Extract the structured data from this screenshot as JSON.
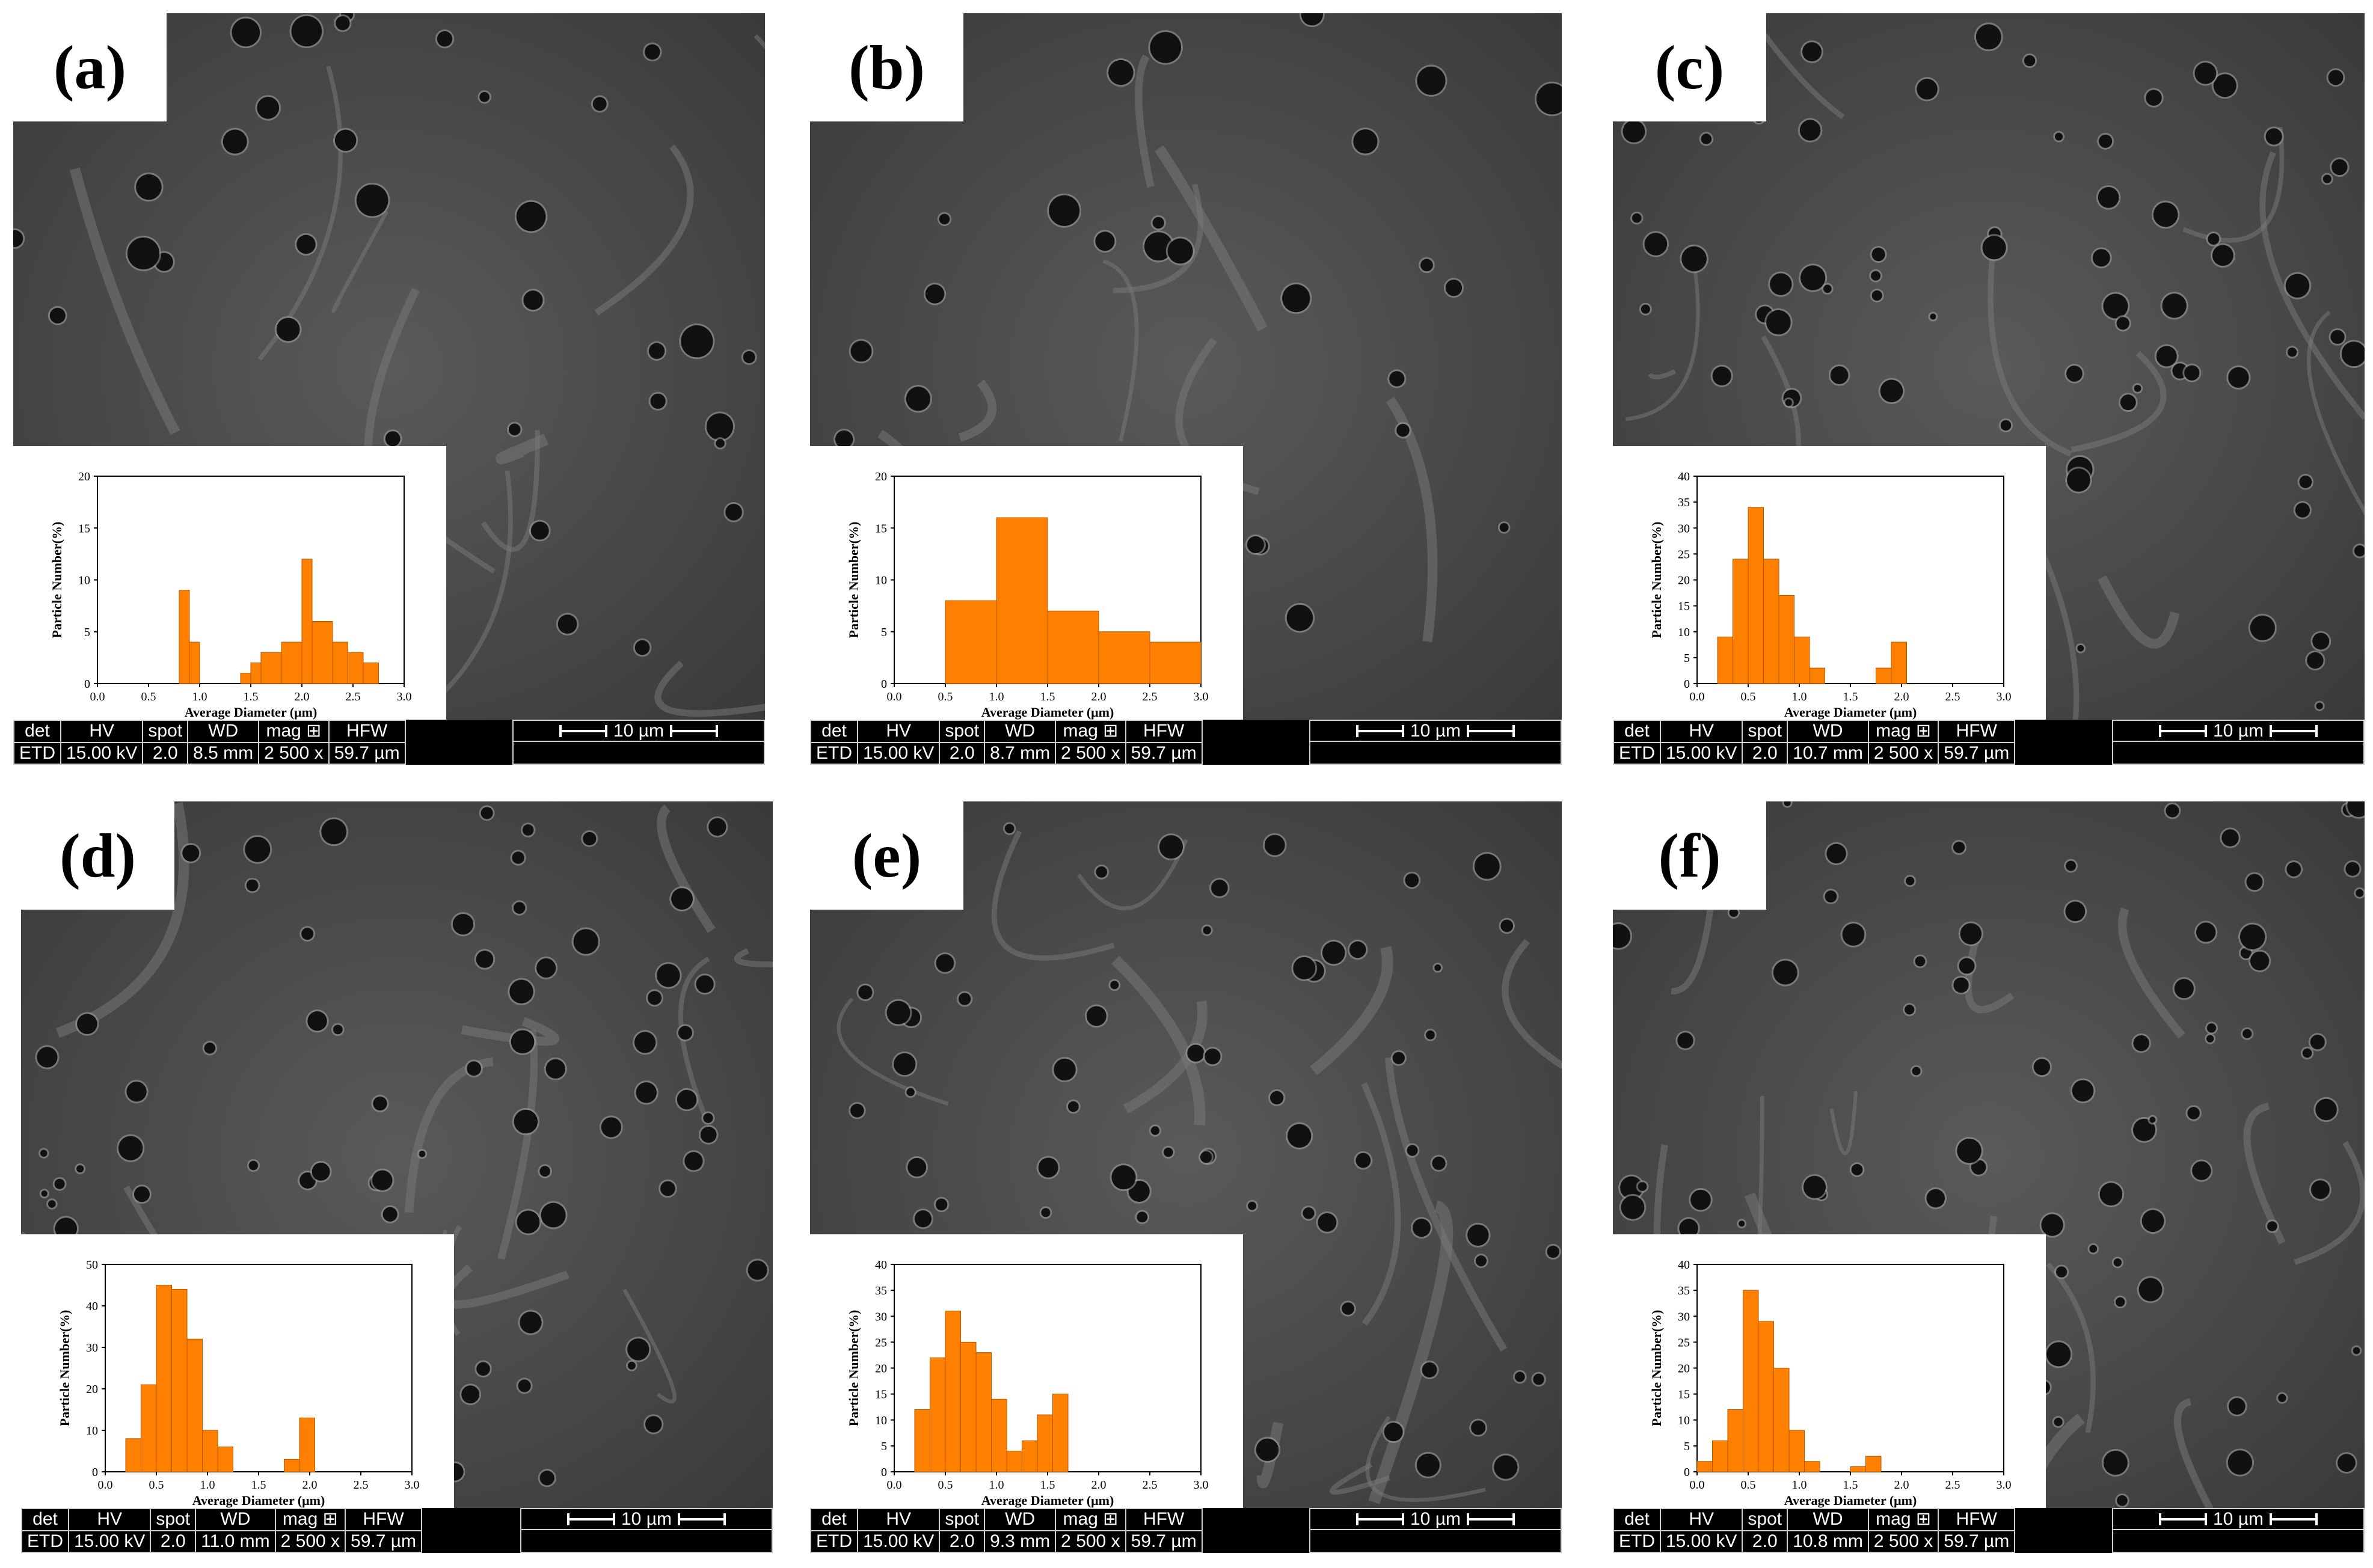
{
  "colors": {
    "bar_fill": "#ff8000",
    "bar_edge": "#b35a00",
    "sem_gray": "#4a4a4a"
  },
  "panels": [
    {
      "id": "a",
      "label": "(a)",
      "wd": "8.5 mm",
      "chart_data": {
        "type": "bar",
        "xlabel": "Average Diameter (μm)",
        "ylabel": "Particle Number(%)",
        "xlim": [
          0,
          3.0
        ],
        "ylim": [
          0,
          20
        ],
        "yticks": [
          "0",
          "5",
          "10",
          "15",
          "20"
        ],
        "xticks": [
          "0.0",
          "0.5",
          "1.0",
          "1.5",
          "2.0",
          "2.5",
          "3.0"
        ],
        "bins": [
          [
            0.8,
            0.9,
            9
          ],
          [
            0.9,
            1.0,
            4
          ],
          [
            1.4,
            1.5,
            1
          ],
          [
            1.5,
            1.6,
            2
          ],
          [
            1.6,
            1.8,
            3
          ],
          [
            1.8,
            2.0,
            4
          ],
          [
            2.0,
            2.1,
            12
          ],
          [
            2.1,
            2.3,
            6
          ],
          [
            2.3,
            2.45,
            4
          ],
          [
            2.45,
            2.6,
            3
          ],
          [
            2.6,
            2.75,
            2
          ]
        ]
      }
    },
    {
      "id": "b",
      "label": "(b)",
      "wd": "8.7 mm",
      "chart_data": {
        "type": "bar",
        "xlabel": "Average Diameter (μm)",
        "ylabel": "Particle Number(%)",
        "xlim": [
          0,
          3.0
        ],
        "ylim": [
          0,
          20
        ],
        "yticks": [
          "0",
          "5",
          "10",
          "15",
          "20"
        ],
        "xticks": [
          "0.0",
          "0.5",
          "1.0",
          "1.5",
          "2.0",
          "2.5",
          "3.0"
        ],
        "bins": [
          [
            0.5,
            1.0,
            8
          ],
          [
            1.0,
            1.5,
            16
          ],
          [
            1.5,
            2.0,
            7
          ],
          [
            2.0,
            2.5,
            5
          ],
          [
            2.5,
            3.0,
            4
          ]
        ]
      }
    },
    {
      "id": "c",
      "label": "(c)",
      "wd": "10.7 mm",
      "chart_data": {
        "type": "bar",
        "xlabel": "Average Diameter (μm)",
        "ylabel": "Particle Number(%)",
        "xlim": [
          0,
          3.0
        ],
        "ylim": [
          0,
          40
        ],
        "yticks": [
          "0",
          "5",
          "10",
          "15",
          "20",
          "25",
          "30",
          "35",
          "40"
        ],
        "xticks": [
          "0.0",
          "0.5",
          "1.0",
          "1.5",
          "2.0",
          "2.5",
          "3.0"
        ],
        "bins": [
          [
            0.2,
            0.35,
            9
          ],
          [
            0.35,
            0.5,
            24
          ],
          [
            0.5,
            0.65,
            34
          ],
          [
            0.65,
            0.8,
            24
          ],
          [
            0.8,
            0.95,
            17
          ],
          [
            0.95,
            1.1,
            9
          ],
          [
            1.1,
            1.25,
            3
          ],
          [
            1.75,
            1.9,
            3
          ],
          [
            1.9,
            2.05,
            8
          ]
        ]
      }
    },
    {
      "id": "d",
      "label": "(d)",
      "wd": "11.0 mm",
      "chart_data": {
        "type": "bar",
        "xlabel": "Average Diameter (μm)",
        "ylabel": "Particle Number(%)",
        "xlim": [
          0,
          3.0
        ],
        "ylim": [
          0,
          50
        ],
        "yticks": [
          "0",
          "10",
          "20",
          "30",
          "40",
          "50"
        ],
        "xticks": [
          "0.0",
          "0.5",
          "1.0",
          "1.5",
          "2.0",
          "2.5",
          "3.0"
        ],
        "bins": [
          [
            0.2,
            0.35,
            8
          ],
          [
            0.35,
            0.5,
            21
          ],
          [
            0.5,
            0.65,
            45
          ],
          [
            0.65,
            0.8,
            44
          ],
          [
            0.8,
            0.95,
            32
          ],
          [
            0.95,
            1.1,
            10
          ],
          [
            1.1,
            1.25,
            6
          ],
          [
            1.75,
            1.9,
            3
          ],
          [
            1.9,
            2.05,
            13
          ]
        ]
      }
    },
    {
      "id": "e",
      "label": "(e)",
      "wd": "9.3 mm",
      "chart_data": {
        "type": "bar",
        "xlabel": "Average Diameter (μm)",
        "ylabel": "Particle Number(%)",
        "xlim": [
          0,
          3.0
        ],
        "ylim": [
          0,
          40
        ],
        "yticks": [
          "0",
          "5",
          "10",
          "15",
          "20",
          "25",
          "30",
          "35",
          "40"
        ],
        "xticks": [
          "0.0",
          "0.5",
          "1.0",
          "1.5",
          "2.0",
          "2.5",
          "3.0"
        ],
        "bins": [
          [
            0.2,
            0.35,
            12
          ],
          [
            0.35,
            0.5,
            22
          ],
          [
            0.5,
            0.65,
            31
          ],
          [
            0.65,
            0.8,
            25
          ],
          [
            0.8,
            0.95,
            23
          ],
          [
            0.95,
            1.1,
            14
          ],
          [
            1.1,
            1.25,
            4
          ],
          [
            1.25,
            1.4,
            6
          ],
          [
            1.4,
            1.55,
            11
          ],
          [
            1.55,
            1.7,
            15
          ]
        ]
      }
    },
    {
      "id": "f",
      "label": "(f)",
      "wd": "10.8 mm",
      "chart_data": {
        "type": "bar",
        "xlabel": "Average Diameter (μm)",
        "ylabel": "Particle Number(%)",
        "xlim": [
          0,
          3.0
        ],
        "ylim": [
          0,
          40
        ],
        "yticks": [
          "0",
          "5",
          "10",
          "15",
          "20",
          "25",
          "30",
          "35",
          "40"
        ],
        "xticks": [
          "0.0",
          "0.5",
          "1.0",
          "1.5",
          "2.0",
          "2.5",
          "3.0"
        ],
        "bins": [
          [
            0.0,
            0.15,
            2
          ],
          [
            0.15,
            0.3,
            6
          ],
          [
            0.3,
            0.45,
            12
          ],
          [
            0.45,
            0.6,
            35
          ],
          [
            0.6,
            0.75,
            29
          ],
          [
            0.75,
            0.9,
            20
          ],
          [
            0.9,
            1.05,
            8
          ],
          [
            1.05,
            1.2,
            2
          ],
          [
            1.5,
            1.65,
            1
          ],
          [
            1.65,
            1.8,
            3
          ]
        ]
      }
    }
  ],
  "info": {
    "det_label": "det",
    "hv_label": "HV",
    "spot_label": "spot",
    "wd_label": "WD",
    "mag_label": "mag ⊞",
    "hfw_label": "HFW",
    "det": "ETD",
    "hv": "15.00 kV",
    "spot": "2.0",
    "mag": "2 500 x",
    "hfw": "59.7 µm",
    "scale": "10 µm"
  }
}
